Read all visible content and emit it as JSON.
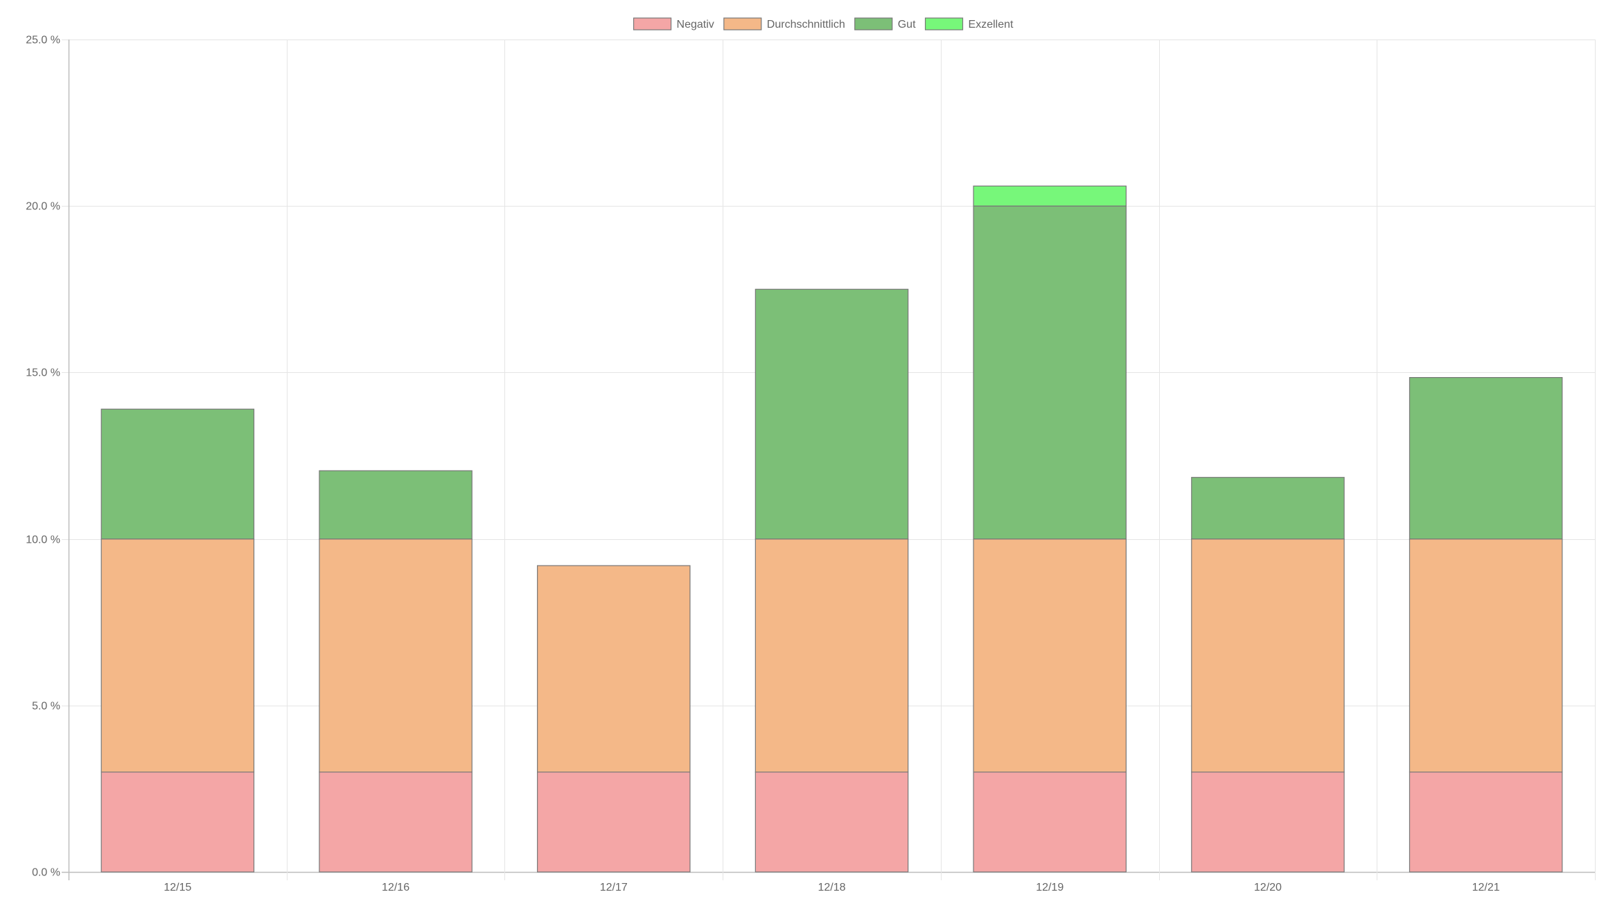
{
  "chart_data": {
    "type": "bar",
    "stacked": true,
    "title": "",
    "xlabel": "",
    "ylabel": "",
    "ylim": [
      0,
      25
    ],
    "y_ticks": [
      0,
      5,
      10,
      15,
      20,
      25
    ],
    "y_tick_format": "{v} %",
    "grid": true,
    "legend_position": "top-center",
    "categories": [
      "12/15",
      "12/16",
      "12/17",
      "12/18",
      "12/19",
      "12/20",
      "12/21"
    ],
    "series": [
      {
        "name": "Negativ",
        "color": "#f4a6a6",
        "values": [
          3,
          3,
          3,
          3,
          3,
          3,
          3
        ]
      },
      {
        "name": "Durchschnittlich",
        "color": "#f4b888",
        "values": [
          7,
          7,
          6.2,
          7,
          7,
          7,
          7
        ]
      },
      {
        "name": "Gut",
        "color": "#7cbf77",
        "values": [
          3.9,
          2.05,
          0,
          7.5,
          10,
          1.85,
          4.85
        ]
      },
      {
        "name": "Exzellent",
        "color": "#77f77a",
        "values": [
          0,
          0,
          0,
          0,
          0.6,
          0,
          0
        ]
      }
    ]
  }
}
